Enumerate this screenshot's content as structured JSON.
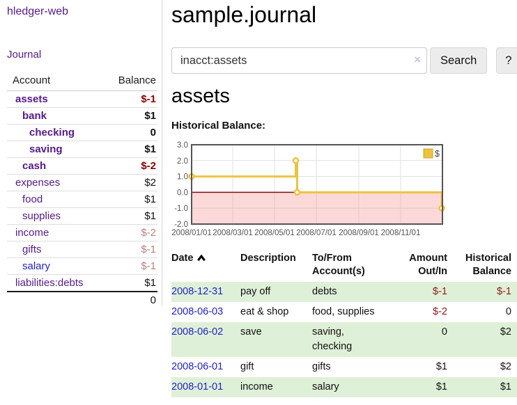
{
  "sidebar": {
    "app_title": "hledger-web",
    "nav_journal": "Journal",
    "accounts_table": {
      "header_account": "Account",
      "header_balance": "Balance",
      "rows": [
        {
          "name": "assets",
          "balance": "$-1",
          "depth": 1,
          "bold": true,
          "name_color": "purple",
          "balance_color": "negative"
        },
        {
          "name": "bank",
          "balance": "$1",
          "depth": 2,
          "bold": true,
          "name_color": "purple",
          "balance_color": "normal"
        },
        {
          "name": "checking",
          "balance": "0",
          "depth": 3,
          "bold": true,
          "name_color": "purple",
          "balance_color": "normal"
        },
        {
          "name": "saving",
          "balance": "$1",
          "depth": 3,
          "bold": true,
          "name_color": "purple",
          "balance_color": "normal"
        },
        {
          "name": "cash",
          "balance": "$-2",
          "depth": 2,
          "bold": true,
          "name_color": "purple",
          "balance_color": "negative"
        },
        {
          "name": "expenses",
          "balance": "$2",
          "depth": 1,
          "bold": false,
          "name_color": "purple",
          "balance_color": "normal"
        },
        {
          "name": "food",
          "balance": "$1",
          "depth": 2,
          "bold": false,
          "name_color": "purple",
          "balance_color": "normal"
        },
        {
          "name": "supplies",
          "balance": "$1",
          "depth": 2,
          "bold": false,
          "name_color": "purple",
          "balance_color": "normal"
        },
        {
          "name": "income",
          "balance": "$-2",
          "depth": 1,
          "bold": false,
          "name_color": "purple",
          "balance_color": "rose"
        },
        {
          "name": "gifts",
          "balance": "$-1",
          "depth": 2,
          "bold": false,
          "name_color": "purple",
          "balance_color": "rose"
        },
        {
          "name": "salary",
          "balance": "$-1",
          "depth": 2,
          "bold": false,
          "name_color": "blue",
          "balance_color": "rose"
        },
        {
          "name": "liabilities:debts",
          "balance": "$1",
          "depth": 1,
          "bold": false,
          "name_color": "purple",
          "balance_color": "normal"
        }
      ],
      "total": "0"
    }
  },
  "main": {
    "title": "sample.journal",
    "search": {
      "value": "inacct:assets",
      "clear_icon": "×",
      "button_label": "Search",
      "help_label": "?"
    },
    "account_heading": "assets",
    "chart_label": "Historical Balance:"
  },
  "chart_data": {
    "type": "line",
    "title": "Historical Balance:",
    "step": true,
    "series": [
      {
        "name": "$",
        "color": "#edc240",
        "points": [
          [
            "2008-01-01",
            1
          ],
          [
            "2008-06-01",
            2
          ],
          [
            "2008-06-03",
            0
          ],
          [
            "2008-12-31",
            -1
          ]
        ]
      }
    ],
    "x_axis": {
      "start": "2008-01-01",
      "span_days": 366,
      "tick_labels": [
        "2008/01/01",
        "2008/03/01",
        "2008/05/01",
        "2008/07/01",
        "2008/09/01",
        "2008/11/01"
      ]
    },
    "y_axis": {
      "min": -2,
      "max": 3,
      "tick_values": [
        3,
        2,
        1,
        0,
        -1,
        -2
      ],
      "tick_labels": [
        "3.0",
        "2.0",
        "1.0",
        "0.0",
        "-1.0",
        "-2.0"
      ]
    },
    "negative_region_fill": "rgba(248,155,155,0.38)",
    "zero_line_color": "#7a1010",
    "grid_color": "#e0e0e0",
    "border_color": "#545454",
    "legend": {
      "label": "$",
      "position": "top-right",
      "swatch_fill": "#edc240",
      "swatch_border": "#cda53a"
    }
  },
  "transactions": {
    "headers": [
      "Date",
      "Description",
      "To/From\nAccount(s)",
      "Amount\nOut/In",
      "Historical\nBalance"
    ],
    "sort_icon_column": 0,
    "rows": [
      {
        "date": "2008-12-31",
        "description": "pay off",
        "to_from": "debts",
        "amount": "$-1",
        "amount_negative": true,
        "balance": "$-1",
        "balance_negative": true
      },
      {
        "date": "2008-06-03",
        "description": "eat & shop",
        "to_from": "food, supplies",
        "amount": "$-2",
        "amount_negative": true,
        "balance": "0",
        "balance_negative": false
      },
      {
        "date": "2008-06-02",
        "description": "save",
        "to_from": "saving,\nchecking",
        "amount": "0",
        "amount_negative": false,
        "balance": "$2",
        "balance_negative": false
      },
      {
        "date": "2008-06-01",
        "description": "gift",
        "to_from": "gifts",
        "amount": "$1",
        "amount_negative": false,
        "balance": "$2",
        "balance_negative": false
      },
      {
        "date": "2008-01-01",
        "description": "income",
        "to_from": "salary",
        "amount": "$1",
        "amount_negative": false,
        "balance": "$1",
        "balance_negative": false
      }
    ]
  },
  "colors": {
    "purple": "#551a8b",
    "link_blue": "#2222cc",
    "negative_dark_red": "#8b0000",
    "table_negative": "#8b1a1a",
    "rose_negative": "#bd7e7e",
    "row_green": "#dff0d8",
    "flot_yellow": "#edc240"
  }
}
